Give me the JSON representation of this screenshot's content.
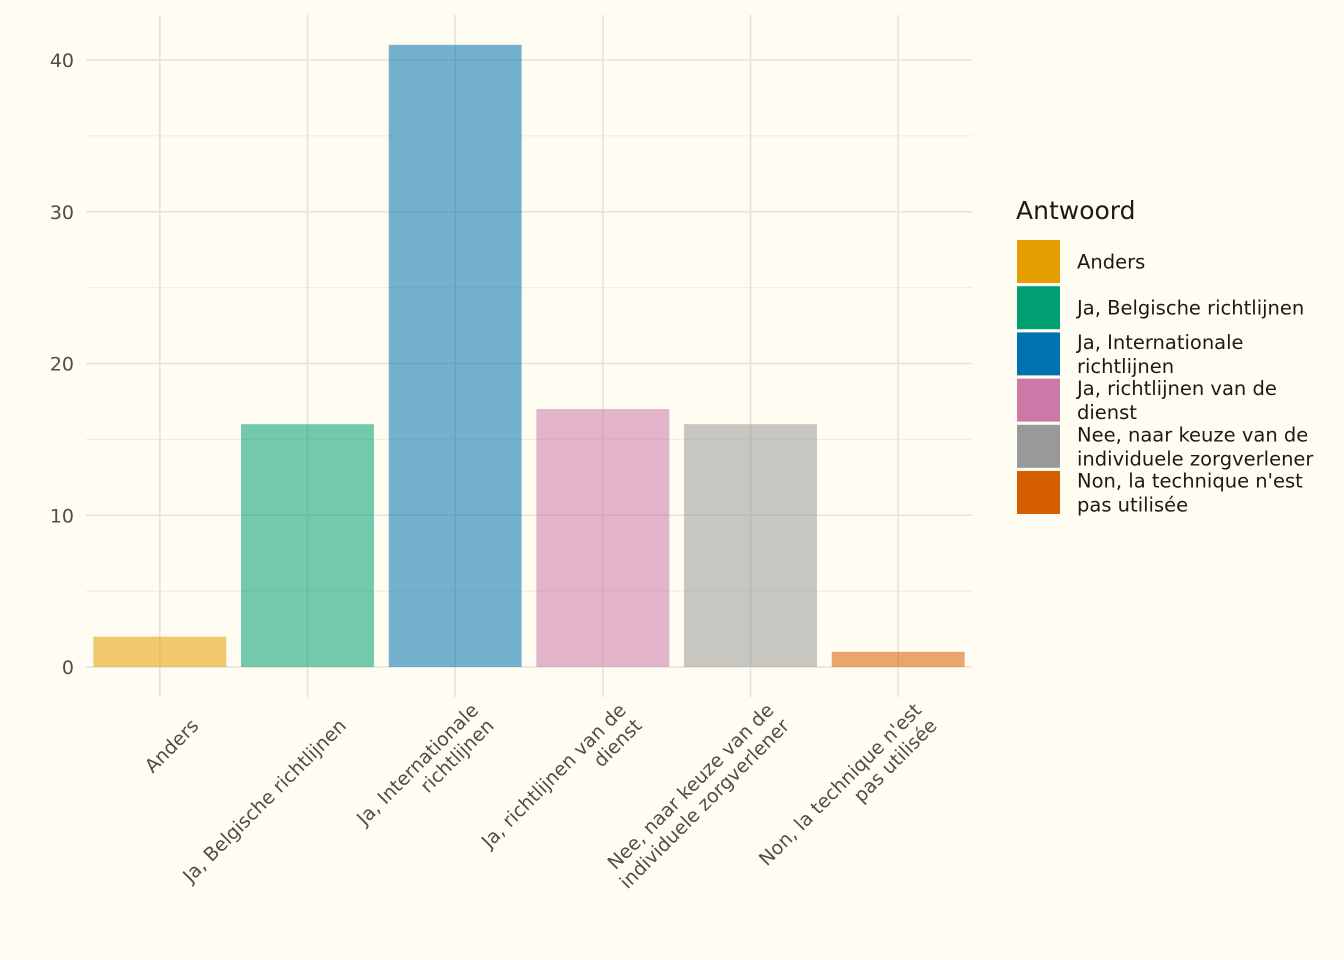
{
  "chart_data": {
    "type": "bar",
    "categories": [
      "Anders",
      "Ja, Belgische richtlijnen",
      "Ja, Internationale richtlijnen",
      "Ja, richtlijnen van de dienst",
      "Nee, naar keuze van de individuele zorgverlener",
      "Non, la technique n'est pas utilisée"
    ],
    "category_label_lines": [
      [
        "Anders"
      ],
      [
        "Ja, Belgische richtlijnen"
      ],
      [
        "Ja, Internationale",
        "richtlijnen"
      ],
      [
        "Ja, richtlijnen van de",
        "dienst"
      ],
      [
        "Nee, naar keuze van de",
        "individuele zorgverlener"
      ],
      [
        "Non, la technique n'est",
        "pas utilisée"
      ]
    ],
    "values": [
      2,
      16,
      41,
      17,
      16,
      1
    ],
    "colors": [
      "#E69F00",
      "#009E73",
      "#0072B2",
      "#CC79A7",
      "#999999",
      "#D55E00"
    ],
    "title": "",
    "xlabel": "",
    "ylabel": "",
    "ylim": [
      0,
      43
    ],
    "yticks": [
      0,
      10,
      20,
      30,
      40
    ],
    "grid": true,
    "legend": {
      "title": "Antwoord",
      "position": "right",
      "entries": [
        {
          "lines": [
            "Anders"
          ]
        },
        {
          "lines": [
            "Ja, Belgische richtlijnen"
          ]
        },
        {
          "lines": [
            "Ja, Internationale",
            "richtlijnen"
          ]
        },
        {
          "lines": [
            "Ja, richtlijnen van de",
            "dienst"
          ]
        },
        {
          "lines": [
            "Nee, naar keuze van de",
            "individuele zorgverlener"
          ]
        },
        {
          "lines": [
            "Non, la technique n'est",
            "pas utilisée"
          ]
        }
      ]
    }
  }
}
